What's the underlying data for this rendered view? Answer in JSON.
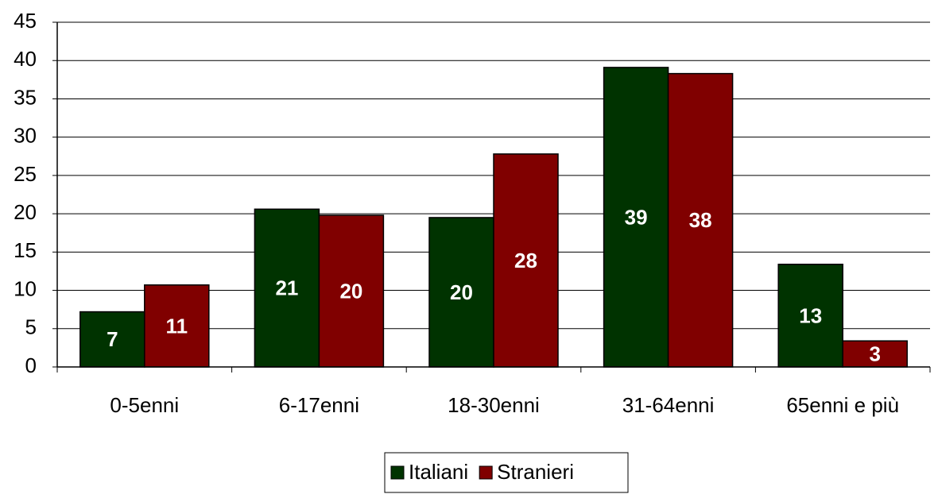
{
  "chart_data": {
    "type": "bar",
    "categories": [
      "0-5enni",
      "6-17enni",
      "18-30enni",
      "31-64enni",
      "65enni e più"
    ],
    "series": [
      {
        "name": "Italiani",
        "color": "#003300",
        "values": [
          7.2,
          20.6,
          19.5,
          39.1,
          13.4
        ],
        "value_labels": [
          "7",
          "21",
          "20",
          "39",
          "13"
        ]
      },
      {
        "name": "Stranieri",
        "color": "#800000",
        "values": [
          10.7,
          19.8,
          27.8,
          38.3,
          3.4
        ],
        "value_labels": [
          "11",
          "20",
          "28",
          "38",
          "3"
        ]
      }
    ],
    "ylim": [
      0,
      45
    ],
    "yticks": [
      0,
      5,
      10,
      15,
      20,
      25,
      30,
      35,
      40,
      45
    ],
    "grid": true,
    "legend": "bottom"
  }
}
